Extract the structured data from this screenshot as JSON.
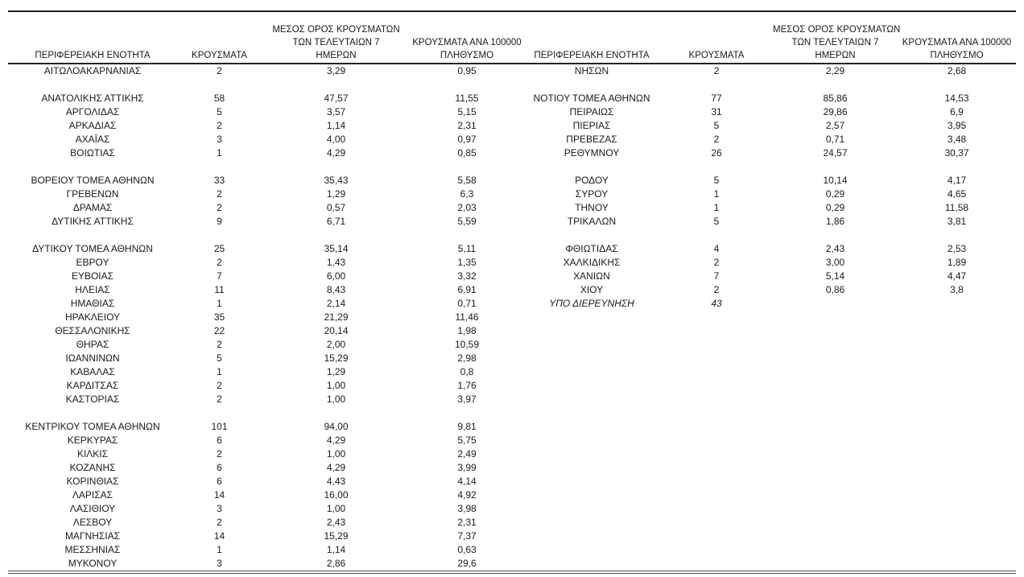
{
  "table": {
    "columns": {
      "region": "ΠΕΡΙΦΕΡΕΙΑΚΗ ΕΝΟΤΗΤΑ",
      "cases": "ΚΡΟΥΣΜΑΤΑ",
      "avg7_lines": [
        "ΜΕΣΟΣ ΟΡΟΣ ΚΡΟΥΣΜΑΤΩΝ",
        "ΤΩΝ ΤΕΛΕΥΤΑΙΩΝ 7",
        "ΗΜΕΡΩΝ"
      ],
      "per100k_lines": [
        "ΚΡΟΥΣΜΑΤΑ ΑΝΑ 100000",
        "ΠΛΗΘΥΣΜΟ"
      ]
    },
    "rows_left": [
      [
        "ΑΙΤΩΛΟΑΚΑΡΝΑΝΙΑΣ",
        "2",
        "3,29",
        "0,95"
      ],
      null,
      [
        "ΑΝΑΤΟΛΙΚΗΣ ΑΤΤΙΚΗΣ",
        "58",
        "47,57",
        "11,55"
      ],
      [
        "ΑΡΓΟΛΙΔΑΣ",
        "5",
        "3,57",
        "5,15"
      ],
      [
        "ΑΡΚΑΔΙΑΣ",
        "2",
        "1,14",
        "2,31"
      ],
      [
        "ΑΧΑΪΑΣ",
        "3",
        "4,00",
        "0,97"
      ],
      [
        "ΒΟΙΩΤΙΑΣ",
        "1",
        "4,29",
        "0,85"
      ],
      null,
      [
        "ΒΟΡΕΙΟΥ ΤΟΜΕΑ ΑΘΗΝΩΝ",
        "33",
        "35,43",
        "5,58"
      ],
      [
        "ΓΡΕΒΕΝΩΝ",
        "2",
        "1,29",
        "6,3"
      ],
      [
        "ΔΡΑΜΑΣ",
        "2",
        "0,57",
        "2,03"
      ],
      [
        "ΔΥΤΙΚΗΣ ΑΤΤΙΚΗΣ",
        "9",
        "6,71",
        "5,59"
      ],
      null,
      [
        "ΔΥΤΙΚΟΥ ΤΟΜΕΑ ΑΘΗΝΩΝ",
        "25",
        "35,14",
        "5,11"
      ],
      [
        "ΕΒΡΟΥ",
        "2",
        "1,43",
        "1,35"
      ],
      [
        "ΕΥΒΟΙΑΣ",
        "7",
        "6,00",
        "3,32"
      ],
      [
        "ΗΛΕΙΑΣ",
        "11",
        "8,43",
        "6,91"
      ],
      [
        "ΗΜΑΘΙΑΣ",
        "1",
        "2,14",
        "0,71"
      ],
      [
        "ΗΡΑΚΛΕΙΟΥ",
        "35",
        "21,29",
        "11,46"
      ],
      [
        "ΘΕΣΣΑΛΟΝΙΚΗΣ",
        "22",
        "20,14",
        "1,98"
      ],
      [
        "ΘΗΡΑΣ",
        "2",
        "2,00",
        "10,59"
      ],
      [
        "ΙΩΑΝΝΙΝΩΝ",
        "5",
        "15,29",
        "2,98"
      ],
      [
        "ΚΑΒΑΛΑΣ",
        "1",
        "1,29",
        "0,8"
      ],
      [
        "ΚΑΡΔΙΤΣΑΣ",
        "2",
        "1,00",
        "1,76"
      ],
      [
        "ΚΑΣΤΟΡΙΑΣ",
        "2",
        "1,00",
        "3,97"
      ],
      null,
      [
        "ΚΕΝΤΡΙΚΟΥ ΤΟΜΕΑ ΑΘΗΝΩΝ",
        "101",
        "94,00",
        "9,81"
      ],
      [
        "ΚΕΡΚΥΡΑΣ",
        "6",
        "4,29",
        "5,75"
      ],
      [
        "ΚΙΛΚΙΣ",
        "2",
        "1,00",
        "2,49"
      ],
      [
        "ΚΟΖΑΝΗΣ",
        "6",
        "4,29",
        "3,99"
      ],
      [
        "ΚΟΡΙΝΘΙΑΣ",
        "6",
        "4,43",
        "4,14"
      ],
      [
        "ΛΑΡΙΣΑΣ",
        "14",
        "16,00",
        "4,92"
      ],
      [
        "ΛΑΣΙΘΙΟΥ",
        "3",
        "1,00",
        "3,98"
      ],
      [
        "ΛΕΣΒΟΥ",
        "2",
        "2,43",
        "2,31"
      ],
      [
        "ΜΑΓΝΗΣΙΑΣ",
        "14",
        "15,29",
        "7,37"
      ],
      [
        "ΜΕΣΣΗΝΙΑΣ",
        "1",
        "1,14",
        "0,63"
      ],
      [
        "ΜΥΚΟΝΟΥ",
        "3",
        "2,86",
        "29,6"
      ]
    ],
    "rows_right": [
      [
        "ΝΗΣΩΝ",
        "2",
        "2,29",
        "2,68"
      ],
      null,
      [
        "ΝΟΤΙΟΥ ΤΟΜΕΑ ΑΘΗΝΩΝ",
        "77",
        "85,86",
        "14,53"
      ],
      [
        "ΠΕΙΡΑΙΩΣ",
        "31",
        "29,86",
        "6,9"
      ],
      [
        "ΠΙΕΡΙΑΣ",
        "5",
        "2,57",
        "3,95"
      ],
      [
        "ΠΡΕΒΕΖΑΣ",
        "2",
        "0,71",
        "3,48"
      ],
      [
        "ΡΕΘΥΜΝΟΥ",
        "26",
        "24,57",
        "30,37"
      ],
      null,
      [
        "ΡΟΔΟΥ",
        "5",
        "10,14",
        "4,17"
      ],
      [
        "ΣΥΡΟΥ",
        "1",
        "0,29",
        "4,65"
      ],
      [
        "ΤΗΝΟΥ",
        "1",
        "0,29",
        "11,58"
      ],
      [
        "ΤΡΙΚΑΛΩΝ",
        "5",
        "1,86",
        "3,81"
      ],
      null,
      [
        "ΦΘΙΩΤΙΔΑΣ",
        "4",
        "2,43",
        "2,53"
      ],
      [
        "ΧΑΛΚΙΔΙΚΗΣ",
        "2",
        "3,00",
        "1,89"
      ],
      [
        "ΧΑΝΙΩΝ",
        "7",
        "5,14",
        "4,47"
      ],
      [
        "ΧΙΟΥ",
        "2",
        "0,86",
        "3,8"
      ],
      {
        "cells": [
          "ΥΠΟ ΔΙΕΡΕΥΝΗΣΗ",
          "43",
          "",
          ""
        ],
        "italic": true
      }
    ]
  }
}
